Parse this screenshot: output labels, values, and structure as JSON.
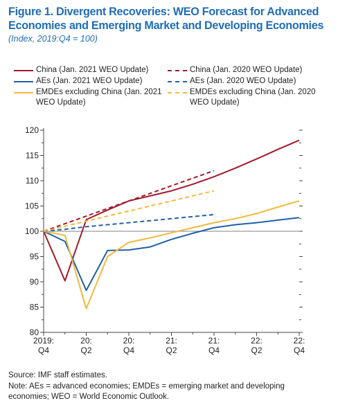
{
  "header": {
    "title_line1": "Figure 1.  Divergent Recoveries: WEO Forecast for Advanced",
    "title_line2": "Economies and Emerging Market and Developing Economies",
    "subtitle": "(Index, 2019:Q4 = 100)"
  },
  "colors": {
    "china": "#a3192a",
    "aes": "#1f5fa8",
    "emdes": "#f2b93b",
    "baseline": "#9a9a9a",
    "title": "#1f6db5"
  },
  "legend": [
    {
      "text_lines": [
        "China (Jan. 2021 WEO Update)"
      ],
      "color": "#a3192a",
      "style": "solid"
    },
    {
      "text_lines": [
        "AEs (Jan. 2021 WEO Update)"
      ],
      "color": "#1f5fa8",
      "style": "solid"
    },
    {
      "text_lines": [
        "EMDEs excluding China (Jan. 2021",
        "WEO Update)"
      ],
      "color": "#f2b93b",
      "style": "solid"
    },
    {
      "text_lines": [
        "China (Jan. 2020 WEO Update)"
      ],
      "color": "#a3192a",
      "style": "dashed"
    },
    {
      "text_lines": [
        "AEs (Jan. 2020 WEO Update)"
      ],
      "color": "#1f5fa8",
      "style": "dashed"
    },
    {
      "text_lines": [
        "EMDEs excluding China (Jan. 2020",
        "WEO Update)"
      ],
      "color": "#f2b93b",
      "style": "dashed"
    }
  ],
  "chart_data": {
    "type": "line",
    "ylim": [
      80,
      120
    ],
    "yticks": [
      80,
      85,
      90,
      95,
      100,
      105,
      110,
      115,
      120
    ],
    "xlim": [
      0,
      12
    ],
    "x_tick_labels": [
      {
        "at": 0,
        "lines": [
          "2019:",
          "Q4"
        ]
      },
      {
        "at": 2,
        "lines": [
          "20:",
          "Q2"
        ]
      },
      {
        "at": 4,
        "lines": [
          "20:",
          "Q4"
        ]
      },
      {
        "at": 6,
        "lines": [
          "21:",
          "Q2"
        ]
      },
      {
        "at": 8,
        "lines": [
          "21:",
          "Q4"
        ]
      },
      {
        "at": 10,
        "lines": [
          "22:",
          "Q2"
        ]
      },
      {
        "at": 12,
        "lines": [
          "22:",
          "Q4"
        ]
      }
    ],
    "baseline": 100,
    "series": [
      {
        "name": "China (Jan. 2021 WEO Update)",
        "color": "#a3192a",
        "dash": false,
        "x": [
          0,
          1,
          2,
          3,
          4,
          5,
          6,
          7,
          8,
          9,
          10,
          11,
          12
        ],
        "y": [
          100,
          90.2,
          102.3,
          104.2,
          106,
          107,
          108,
          109.3,
          110.8,
          112.5,
          114.3,
          116.2,
          118
        ]
      },
      {
        "name": "AEs (Jan. 2021 WEO Update)",
        "color": "#1f5fa8",
        "dash": false,
        "x": [
          0,
          1,
          2,
          3,
          4,
          5,
          6,
          7,
          8,
          9,
          10,
          11,
          12
        ],
        "y": [
          100,
          98,
          88.3,
          96.2,
          96.3,
          96.9,
          98.4,
          99.6,
          100.7,
          101.3,
          101.7,
          102.2,
          102.7
        ]
      },
      {
        "name": "EMDEs excluding China (Jan. 2021 WEO Update)",
        "color": "#f2b93b",
        "dash": false,
        "x": [
          0,
          1,
          2,
          3,
          4,
          5,
          6,
          7,
          8,
          9,
          10,
          11,
          12
        ],
        "y": [
          100,
          99.2,
          84.7,
          95,
          97.8,
          98.7,
          99.7,
          100.7,
          101.7,
          102.5,
          103.5,
          104.8,
          106
        ]
      },
      {
        "name": "China (Jan. 2020 WEO Update)",
        "color": "#a3192a",
        "dash": true,
        "x": [
          0,
          1,
          2,
          3,
          4,
          5,
          6,
          7,
          8
        ],
        "y": [
          100,
          101.5,
          103,
          104.5,
          106,
          107.5,
          109,
          110.5,
          112
        ]
      },
      {
        "name": "AEs (Jan. 2020 WEO Update)",
        "color": "#1f5fa8",
        "dash": true,
        "x": [
          0,
          1,
          2,
          3,
          4,
          5,
          6,
          7,
          8
        ],
        "y": [
          100,
          100.4,
          100.9,
          101.3,
          101.7,
          102.1,
          102.5,
          102.9,
          103.3
        ]
      },
      {
        "name": "EMDEs excluding China (Jan. 2020 WEO Update)",
        "color": "#f2b93b",
        "dash": true,
        "x": [
          0,
          1,
          2,
          3,
          4,
          5,
          6,
          7,
          8
        ],
        "y": [
          100,
          101,
          102,
          103,
          104,
          105,
          106,
          107,
          108
        ]
      }
    ]
  },
  "footer": {
    "source": "Source: IMF staff estimates.",
    "note_line1": "Note: AEs = advanced economies; EMDEs = emerging market and developing",
    "note_line2": "economies; WEO = World Economic Outlook."
  }
}
